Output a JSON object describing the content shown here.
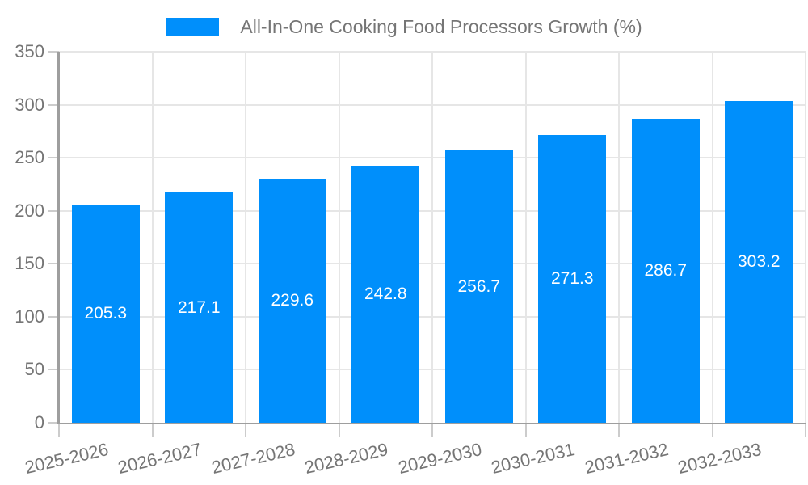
{
  "chart_data": {
    "type": "bar",
    "title": "All-In-One Cooking Food Processors Growth (%)",
    "categories": [
      "2025-2026",
      "2026-2027",
      "2027-2028",
      "2028-2029",
      "2029-2030",
      "2030-2031",
      "2031-2032",
      "2032-2033"
    ],
    "values": [
      205.3,
      217.1,
      229.6,
      242.8,
      256.7,
      271.3,
      286.7,
      303.2
    ],
    "value_labels": [
      "205.3",
      "217.1",
      "229.6",
      "242.8",
      "256.7",
      "271.3",
      "286.7",
      "303.2"
    ],
    "xlabel": "",
    "ylabel": "",
    "ylim": [
      0,
      350
    ],
    "y_ticks": [
      0,
      50,
      100,
      150,
      200,
      250,
      300,
      350
    ],
    "grid": "on",
    "legend_position": "top-center",
    "colors": {
      "bar": "#008FFB",
      "axis_line": "#9e9e9e",
      "gridline": "#e6e6e6",
      "tick": "#cccccc",
      "axis_text": "#757575",
      "value_label_text": "#ffffff",
      "background": "#ffffff"
    }
  }
}
